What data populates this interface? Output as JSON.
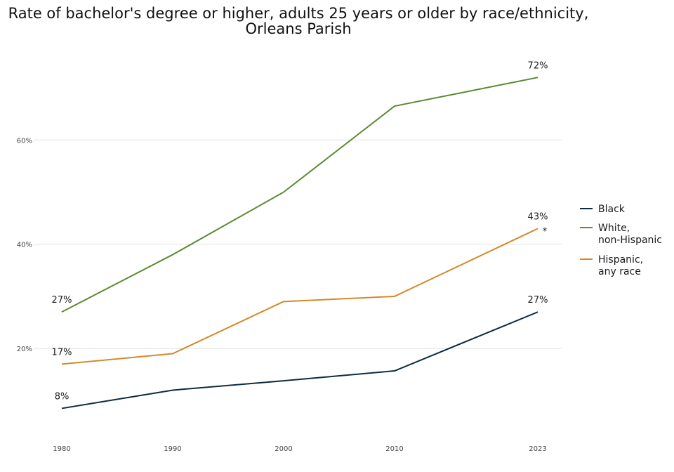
{
  "chart_data": {
    "type": "line",
    "title": "Rate of bachelor's degree or higher, adults 25 years or older by race/ethnicity,",
    "subtitle": "Orleans Parish",
    "xlabel": "",
    "ylabel": "",
    "categories": [
      "1980",
      "1990",
      "2000",
      "2010",
      "2023"
    ],
    "y_ticks": [
      "20%",
      "40%",
      "60%"
    ],
    "y_tick_values": [
      0.2,
      0.4,
      0.6
    ],
    "ylim": [
      0.06,
      0.75
    ],
    "grid": "horizontal",
    "legend_position": "right",
    "series": [
      {
        "name": "Black",
        "color": "#0f2b3f",
        "values": [
          0.085,
          0.12,
          0.138,
          0.157,
          0.27
        ],
        "labels": [
          {
            "index": 0,
            "text": "8%"
          },
          {
            "index": 4,
            "text": "27%"
          }
        ]
      },
      {
        "name": "White,\nnon-Hispanic",
        "legend_lines": [
          "White,",
          "non-Hispanic"
        ],
        "color": "#5a8a32",
        "values": [
          0.27,
          0.38,
          0.5,
          0.665,
          0.72
        ],
        "labels": [
          {
            "index": 0,
            "text": "27%"
          },
          {
            "index": 4,
            "text": "72%"
          }
        ]
      },
      {
        "name": "Hispanic,\nany race",
        "legend_lines": [
          "Hispanic,",
          "any race"
        ],
        "color": "#d4892a",
        "values": [
          0.17,
          0.19,
          0.29,
          0.3,
          0.43
        ],
        "labels": [
          {
            "index": 0,
            "text": "17%"
          },
          {
            "index": 4,
            "text": "43%"
          }
        ]
      }
    ],
    "annotation": "*"
  }
}
